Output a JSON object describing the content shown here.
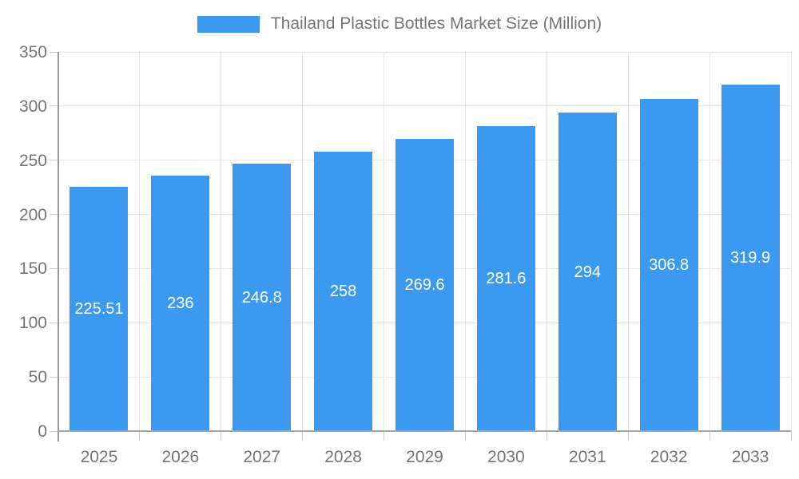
{
  "legend": {
    "label": "Thailand Plastic Bottles Market Size (Million)"
  },
  "chart_data": {
    "type": "bar",
    "title": "Thailand Plastic Bottles Market Size (Million)",
    "categories": [
      "2025",
      "2026",
      "2027",
      "2028",
      "2029",
      "2030",
      "2031",
      "2032",
      "2033"
    ],
    "values": [
      225.51,
      236,
      246.8,
      258,
      269.6,
      281.6,
      294,
      306.8,
      319.9
    ],
    "value_labels": [
      "225.51",
      "236",
      "246.8",
      "258",
      "269.6",
      "281.6",
      "294",
      "306.8",
      "319.9"
    ],
    "ytick_labels": [
      "0",
      "50",
      "100",
      "150",
      "200",
      "250",
      "300",
      "350"
    ],
    "yticks": [
      0,
      50,
      100,
      150,
      200,
      250,
      300,
      350
    ],
    "ylim": [
      0,
      350
    ],
    "xlabel": "",
    "ylabel": "",
    "grid": true,
    "legend_position": "top",
    "value_labels_inside_bars": true
  },
  "colors": {
    "bar": "#3b99f0",
    "bar_value_text": "#ffffff",
    "grid": "#e6e6e6",
    "axis_y": "#999999",
    "axis_x": "#a6a6a6",
    "tick": "#cccccc",
    "tick_text": "#757575",
    "legend_text": "#757575"
  }
}
